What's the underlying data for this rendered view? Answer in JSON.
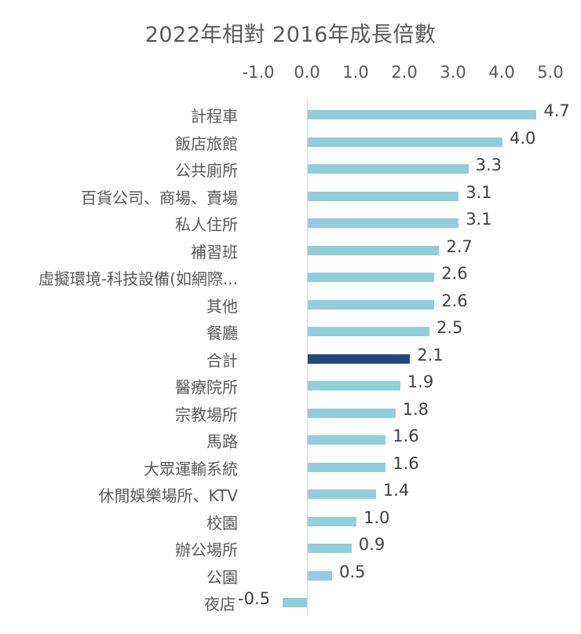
{
  "chart_data": {
    "type": "bar",
    "orientation": "horizontal",
    "title": "2022年相對 2016年成長倍數",
    "xlabel": "",
    "ylabel": "",
    "xlim": [
      -1.0,
      5.0
    ],
    "x_ticks": [
      "-1.0",
      "0.0",
      "1.0",
      "2.0",
      "3.0",
      "4.0",
      "5.0"
    ],
    "axis_position": "top",
    "grid": false,
    "legend": null,
    "categories": [
      "計程車",
      "飯店旅館",
      "公共廁所",
      "百貨公司、商場、賣場",
      "私人住所",
      "補習班",
      "虛擬環境-科技設備(如網際...",
      "其他",
      "餐廳",
      "合計",
      "醫療院所",
      "宗教場所",
      "馬路",
      "大眾運輸系統",
      "休閒娛樂場所、KTV",
      "校園",
      "辦公場所",
      "公園",
      "夜店"
    ],
    "values": [
      4.7,
      4.0,
      3.3,
      3.1,
      3.1,
      2.7,
      2.6,
      2.6,
      2.5,
      2.1,
      1.9,
      1.8,
      1.6,
      1.6,
      1.4,
      1.0,
      0.9,
      0.5,
      -0.5
    ],
    "value_labels": [
      "4.7",
      "4.0",
      "3.3",
      "3.1",
      "3.1",
      "2.7",
      "2.6",
      "2.6",
      "2.5",
      "2.1",
      "1.9",
      "1.8",
      "1.6",
      "1.6",
      "1.4",
      "1.0",
      "0.9",
      "0.5",
      "-0.5"
    ],
    "colors": {
      "default": "#92cddc",
      "highlight": "#1f497d",
      "highlight_category": "合計"
    }
  }
}
